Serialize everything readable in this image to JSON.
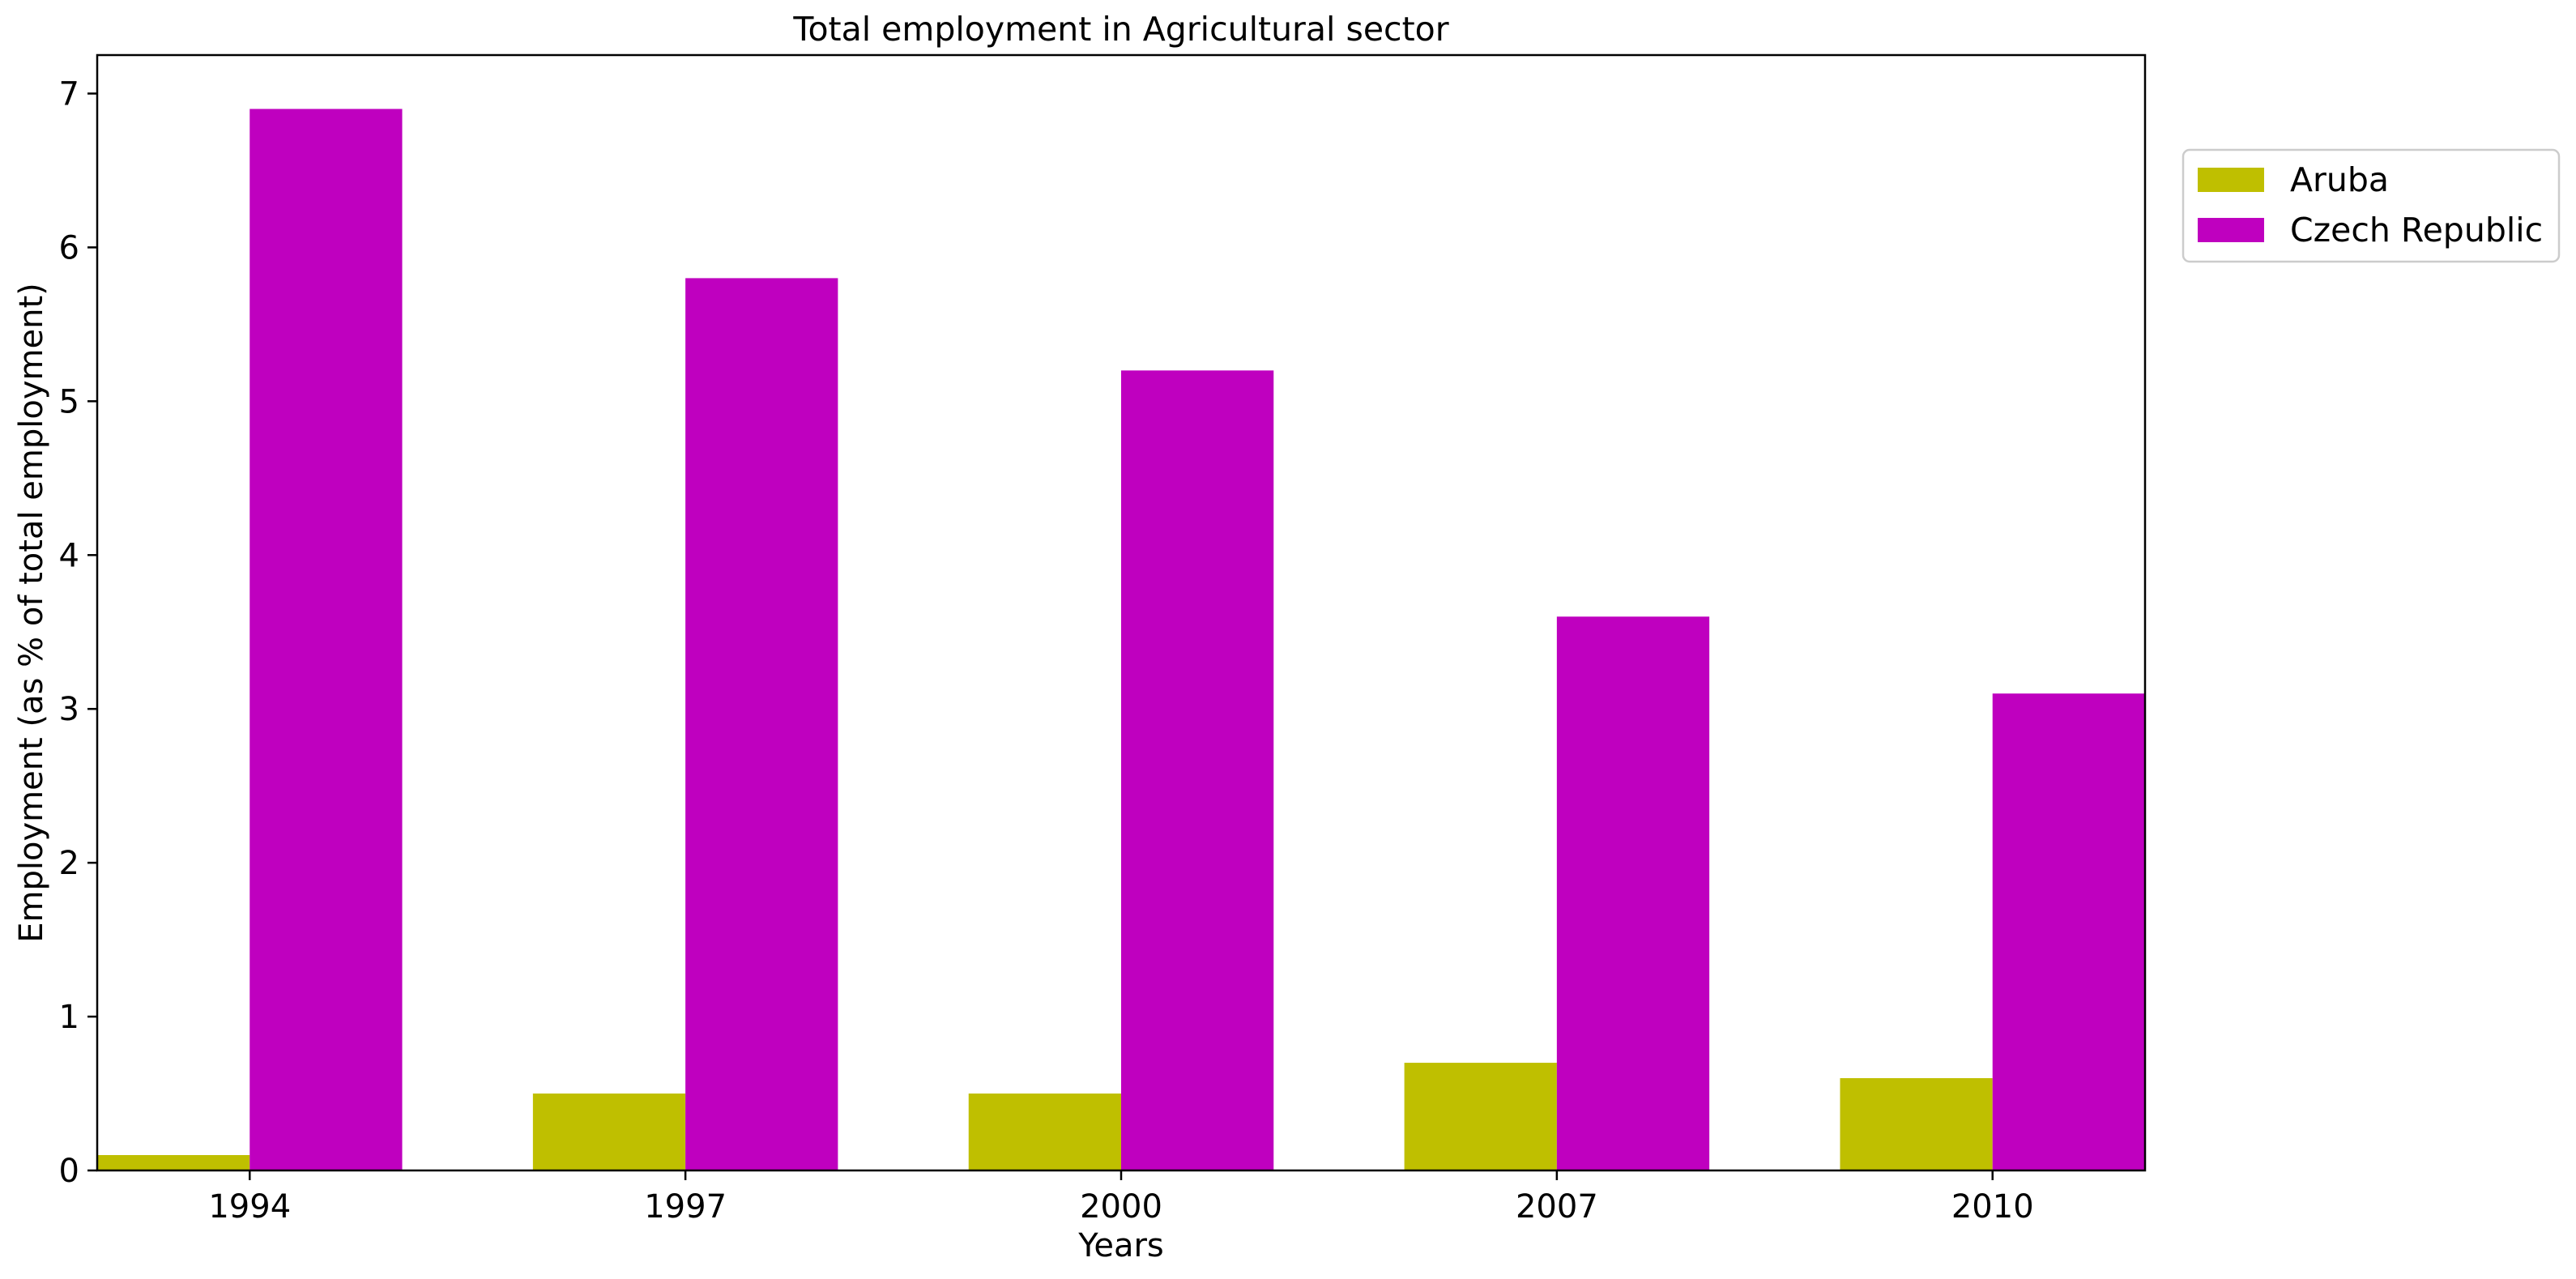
{
  "chart_data": {
    "type": "bar",
    "title": "Total employment in Agricultural sector",
    "xlabel": "Years",
    "ylabel": "Employment (as % of total employment)",
    "categories": [
      "1994",
      "1997",
      "2000",
      "2007",
      "2010"
    ],
    "series": [
      {
        "name": "Aruba",
        "color": "#bfbf00",
        "values": [
          0.1,
          0.5,
          0.5,
          0.7,
          0.6
        ]
      },
      {
        "name": "Czech Republic",
        "color": "#bf00bf",
        "values": [
          6.9,
          5.8,
          5.2,
          3.6,
          3.1
        ]
      }
    ],
    "ylim": [
      0,
      7.25
    ],
    "yticks": [
      0,
      1,
      2,
      3,
      4,
      5,
      6,
      7
    ],
    "grid": false,
    "legend_position": "outside top-right"
  }
}
